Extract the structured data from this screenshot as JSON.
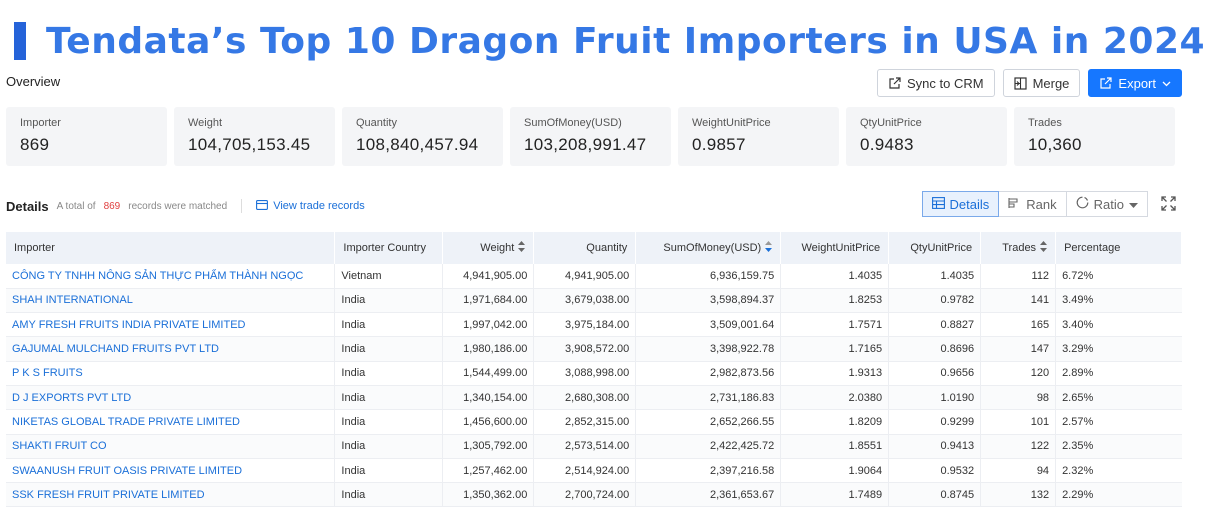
{
  "title": "Tendata’s Top 10 Dragon Fruit Importers in USA in 2024",
  "overview_label": "Overview",
  "actions": {
    "sync": "Sync to CRM",
    "merge": "Merge",
    "export": "Export"
  },
  "stats": [
    {
      "label": "Importer",
      "value": "869"
    },
    {
      "label": "Weight",
      "value": "104,705,153.45"
    },
    {
      "label": "Quantity",
      "value": "108,840,457.94"
    },
    {
      "label": "SumOfMoney(USD)",
      "value": "103,208,991.47"
    },
    {
      "label": "WeightUnitPrice",
      "value": "0.9857"
    },
    {
      "label": "QtyUnitPrice",
      "value": "0.9483"
    },
    {
      "label": "Trades",
      "value": "10,360"
    }
  ],
  "details": {
    "title": "Details",
    "prefix": "A total of",
    "count": "869",
    "suffix": "records were matched",
    "view_link": "View trade records"
  },
  "view_tabs": {
    "details": "Details",
    "rank": "Rank",
    "ratio": "Ratio"
  },
  "table": {
    "headers": [
      "Importer",
      "Importer Country",
      "Weight",
      "Quantity",
      "SumOfMoney(USD)",
      "WeightUnitPrice",
      "QtyUnitPrice",
      "Trades",
      "Percentage"
    ],
    "rows": [
      [
        "CÔNG TY TNHH NÔNG SẢN THỰC PHẨM THÀNH NGỌC",
        "Vietnam",
        "4,941,905.00",
        "4,941,905.00",
        "6,936,159.75",
        "1.4035",
        "1.4035",
        "112",
        "6.72%"
      ],
      [
        "SHAH INTERNATIONAL",
        "India",
        "1,971,684.00",
        "3,679,038.00",
        "3,598,894.37",
        "1.8253",
        "0.9782",
        "141",
        "3.49%"
      ],
      [
        "AMY FRESH FRUITS INDIA PRIVATE LIMITED",
        "India",
        "1,997,042.00",
        "3,975,184.00",
        "3,509,001.64",
        "1.7571",
        "0.8827",
        "165",
        "3.40%"
      ],
      [
        "GAJUMAL MULCHAND FRUITS PVT LTD",
        "India",
        "1,980,186.00",
        "3,908,572.00",
        "3,398,922.78",
        "1.7165",
        "0.8696",
        "147",
        "3.29%"
      ],
      [
        "P K S FRUITS",
        "India",
        "1,544,499.00",
        "3,088,998.00",
        "2,982,873.56",
        "1.9313",
        "0.9656",
        "120",
        "2.89%"
      ],
      [
        "D J EXPORTS PVT LTD",
        "India",
        "1,340,154.00",
        "2,680,308.00",
        "2,731,186.83",
        "2.0380",
        "1.0190",
        "98",
        "2.65%"
      ],
      [
        "NIKETAS GLOBAL TRADE PRIVATE LIMITED",
        "India",
        "1,456,600.00",
        "2,852,315.00",
        "2,652,266.55",
        "1.8209",
        "0.9299",
        "101",
        "2.57%"
      ],
      [
        "SHAKTI FRUIT CO",
        "India",
        "1,305,792.00",
        "2,573,514.00",
        "2,422,425.72",
        "1.8551",
        "0.9413",
        "122",
        "2.35%"
      ],
      [
        "SWAANUSH FRUIT OASIS PRIVATE LIMITED",
        "India",
        "1,257,462.00",
        "2,514,924.00",
        "2,397,216.58",
        "1.9064",
        "0.9532",
        "94",
        "2.32%"
      ],
      [
        "SSK FRESH FRUIT PRIVATE LIMITED",
        "India",
        "1,350,362.00",
        "2,700,724.00",
        "2,361,653.67",
        "1.7489",
        "0.8745",
        "132",
        "2.29%"
      ]
    ]
  },
  "colors": {
    "title": "#3578e5",
    "accent": "#2563d9",
    "link": "#1a6fd8",
    "primary": "#1677ff",
    "count_red": "#e04040"
  }
}
